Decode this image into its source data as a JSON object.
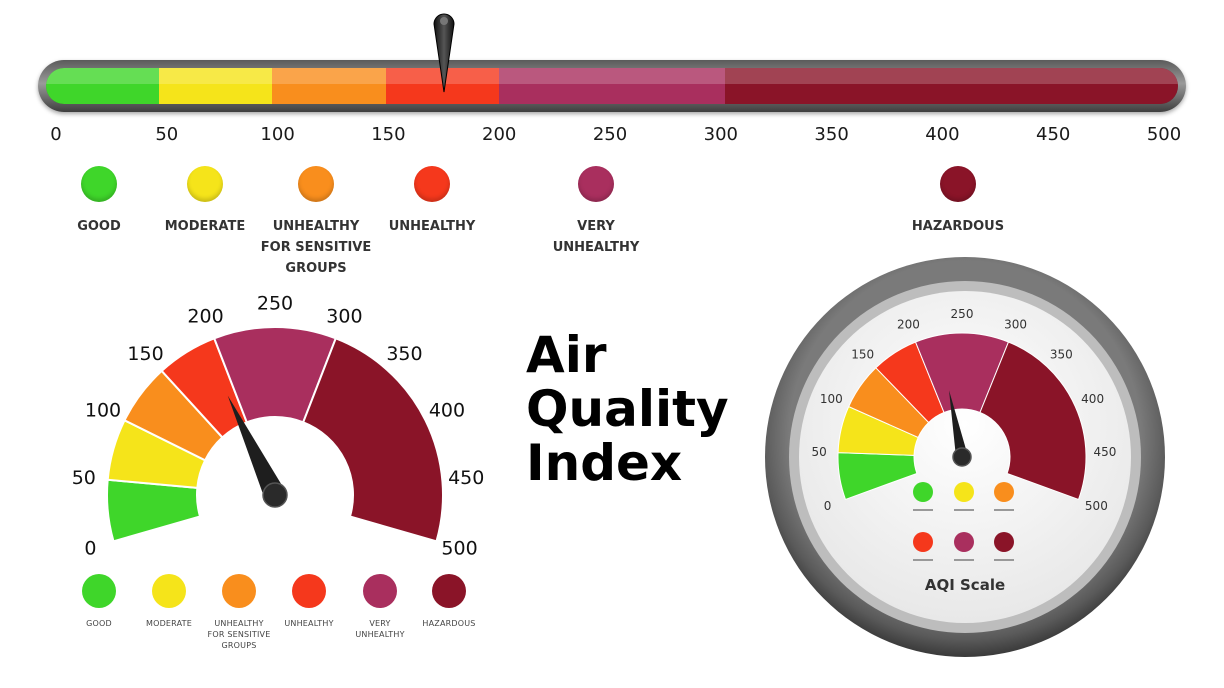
{
  "scale": {
    "min": 0,
    "max": 500,
    "ticks": [
      "0",
      "50",
      "100",
      "150",
      "200",
      "250",
      "300",
      "350",
      "400",
      "450",
      "500"
    ],
    "pointer_value": 176,
    "segments": [
      {
        "from": 0,
        "to": 50,
        "color": "#3fd62a"
      },
      {
        "from": 50,
        "to": 100,
        "color": "#f5e41a"
      },
      {
        "from": 100,
        "to": 150,
        "color": "#f98e1d"
      },
      {
        "from": 150,
        "to": 200,
        "color": "#f5381c"
      },
      {
        "from": 200,
        "to": 300,
        "color": "#a92f5e"
      },
      {
        "from": 300,
        "to": 500,
        "color": "#8a1428"
      }
    ]
  },
  "categories": [
    {
      "label": "GOOD",
      "color": "#3fd62a"
    },
    {
      "label": "MODERATE",
      "color": "#f5e41a"
    },
    {
      "label": "UNHEALTHY\nFOR SENSITIVE\nGROUPS",
      "color": "#f98e1d"
    },
    {
      "label": "UNHEALTHY",
      "color": "#f5381c"
    },
    {
      "label": "VERY\nUNHEALTHY",
      "color": "#a92f5e"
    },
    {
      "label": "HAZARDOUS",
      "color": "#8a1428"
    }
  ],
  "left_gauge": {
    "labels": [
      "0",
      "50",
      "100",
      "150",
      "200",
      "250",
      "300",
      "350",
      "400",
      "450",
      "500"
    ],
    "pointer_value": 190,
    "legend": [
      "GOOD",
      "MODERATE",
      "UNHEALTHY\nFOR SENSITIVE\nGROUPS",
      "UNHEALTHY",
      "VERY\nUNHEALTHY",
      "HAZARDOUS"
    ]
  },
  "title": "Air\nQuality\nIndex",
  "right_dial": {
    "labels": [
      "0",
      "50",
      "100",
      "150",
      "200",
      "250",
      "300",
      "350",
      "400",
      "450",
      "500"
    ],
    "pointer_value": 225,
    "caption": "AQI Scale"
  }
}
